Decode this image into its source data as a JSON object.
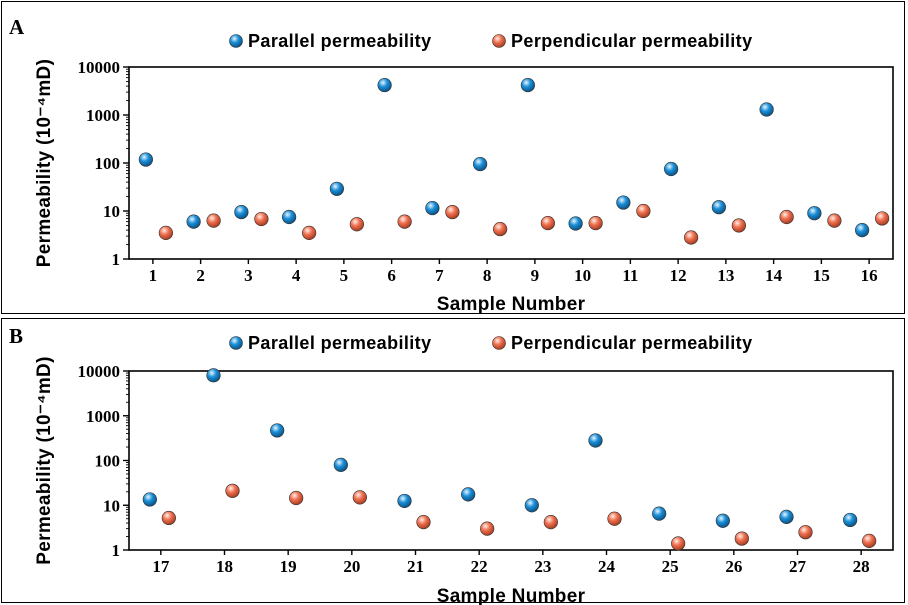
{
  "colors": {
    "parallel": "#1a8fd8",
    "perpendicular": "#f07050",
    "axis": "#000000"
  },
  "chart_data": [
    {
      "type": "scatter",
      "panel_label": "A",
      "xlabel": "Sample Number",
      "ylabel": "Permeability (10⁻⁴mD)",
      "yscale": "log",
      "ylim": [
        1,
        10000
      ],
      "yticks": [
        "1",
        "10",
        "100",
        "1000",
        "10000"
      ],
      "categories": [
        "1",
        "2",
        "3",
        "4",
        "5",
        "6",
        "7",
        "8",
        "9",
        "10",
        "11",
        "12",
        "13",
        "14",
        "15",
        "16"
      ],
      "legend_position": "top-center",
      "series": [
        {
          "name": "Parallel permeability",
          "color": "#1a8fd8",
          "values": [
            118,
            6,
            9.5,
            7.5,
            29,
            4200,
            11.5,
            95,
            4200,
            5.5,
            15,
            75,
            12,
            1300,
            9,
            4
          ]
        },
        {
          "name": "Perpendicular permeability",
          "color": "#f07050",
          "values": [
            3.5,
            6.3,
            6.8,
            3.5,
            5.3,
            6,
            9.5,
            4.2,
            5.6,
            5.6,
            10,
            2.8,
            5,
            7.5,
            6.3,
            7
          ]
        }
      ]
    },
    {
      "type": "scatter",
      "panel_label": "B",
      "xlabel": "Sample Number",
      "ylabel": "Permeability (10⁻⁴mD)",
      "yscale": "log",
      "ylim": [
        1,
        10000
      ],
      "yticks": [
        "1",
        "10",
        "100",
        "1000",
        "10000"
      ],
      "categories": [
        "17",
        "18",
        "19",
        "20",
        "21",
        "22",
        "23",
        "24",
        "25",
        "26",
        "27",
        "28"
      ],
      "legend_position": "top-center",
      "series": [
        {
          "name": "Parallel permeability",
          "color": "#1a8fd8",
          "values": [
            13.5,
            8000,
            470,
            80,
            12.5,
            17.5,
            10,
            280,
            6.5,
            4.5,
            5.5,
            4.7
          ]
        },
        {
          "name": "Perpendicular permeability",
          "color": "#f07050",
          "values": [
            5.2,
            21,
            14.5,
            15,
            4.2,
            3,
            4.2,
            5,
            1.4,
            1.8,
            2.5,
            1.6
          ]
        }
      ]
    }
  ]
}
